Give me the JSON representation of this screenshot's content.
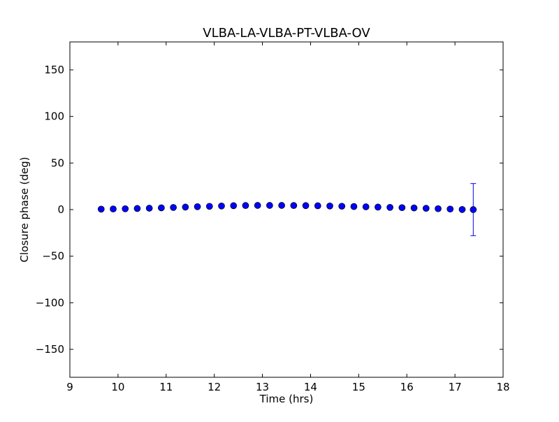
{
  "chart_data": {
    "type": "scatter",
    "title": "VLBA-LA-VLBA-PT-VLBA-OV",
    "xlabel": "Time (hrs)",
    "ylabel": "Closure phase (deg)",
    "xlim": [
      9,
      18
    ],
    "ylim": [
      -180,
      180
    ],
    "xticks": [
      9,
      10,
      11,
      12,
      13,
      14,
      15,
      16,
      17,
      18
    ],
    "xtick_labels": [
      "9",
      "10",
      "11",
      "12",
      "13",
      "14",
      "15",
      "16",
      "17",
      "18"
    ],
    "yticks": [
      -150,
      -100,
      -50,
      0,
      50,
      100,
      150
    ],
    "ytick_labels": [
      "−150",
      "−100",
      "−50",
      "0",
      "50",
      "100",
      "150"
    ],
    "grid": false,
    "marker_color": "#0000ff",
    "series": [
      {
        "x": [
          9.65,
          9.9,
          10.15,
          10.4,
          10.65,
          10.9,
          11.15,
          11.4,
          11.65,
          11.9,
          12.15,
          12.4,
          12.65,
          12.9,
          13.15,
          13.4,
          13.65,
          13.9,
          14.15,
          14.4,
          14.65,
          14.9,
          15.15,
          15.4,
          15.65,
          15.9,
          16.15,
          16.4,
          16.65,
          16.9,
          17.15,
          17.38
        ],
        "y": [
          0.5,
          0.7,
          0.9,
          1.2,
          1.5,
          1.9,
          2.3,
          2.7,
          3.1,
          3.5,
          3.9,
          4.2,
          4.4,
          4.5,
          4.5,
          4.5,
          4.4,
          4.3,
          4.1,
          3.9,
          3.6,
          3.3,
          3.0,
          2.7,
          2.4,
          2.1,
          1.8,
          1.4,
          1.0,
          0.6,
          0.1,
          0.0
        ],
        "yerr": [
          1,
          1,
          1,
          1,
          1,
          1,
          1,
          1,
          1,
          1,
          1,
          1,
          1,
          1,
          1,
          1,
          1,
          1,
          1,
          1,
          1,
          1,
          1,
          1,
          1,
          1,
          1,
          1,
          1,
          1,
          1,
          28
        ]
      }
    ]
  }
}
